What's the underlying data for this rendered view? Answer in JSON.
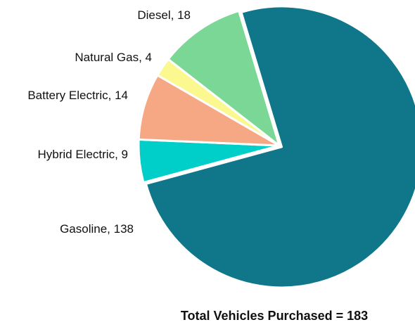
{
  "chart_data": {
    "type": "pie",
    "title": "Total Vehicles Purchased = 183",
    "categories": [
      "Gasoline",
      "Hybrid Electric",
      "Battery Electric",
      "Natural Gas",
      "Diesel"
    ],
    "values": [
      138,
      9,
      14,
      4,
      18
    ],
    "colors": [
      "#0f7789",
      "#00cfc9",
      "#f5a883",
      "#fbf88f",
      "#7ad796"
    ],
    "label_separator": ", "
  }
}
